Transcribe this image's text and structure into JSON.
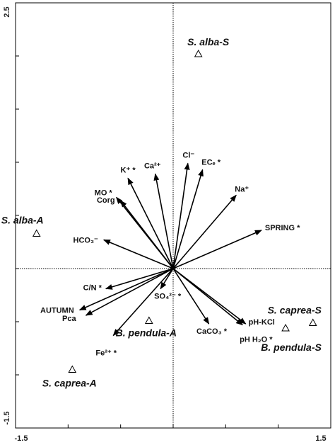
{
  "chart_data": {
    "type": "scatter",
    "title": "",
    "xlabel": "",
    "ylabel": "",
    "xlim": [
      -1.5,
      1.5
    ],
    "ylim": [
      -1.5,
      2.5
    ],
    "x_ticks": [
      "-1.5",
      "1.5"
    ],
    "y_ticks": [
      "2.5",
      "-1.5"
    ],
    "grid": false,
    "reference_lines": {
      "x": 0,
      "y": 0
    },
    "vectors": [
      {
        "label": "Cl⁻",
        "x": 0.14,
        "y": 0.99
      },
      {
        "label": "ECₑ *",
        "x": 0.28,
        "y": 0.93
      },
      {
        "label": "Ca²⁺",
        "x": -0.17,
        "y": 0.89
      },
      {
        "label": "K⁺ *",
        "x": -0.43,
        "y": 0.85
      },
      {
        "label": "MO *",
        "x": -0.54,
        "y": 0.67
      },
      {
        "label": "Corg",
        "x": -0.5,
        "y": 0.64
      },
      {
        "label": "Na⁺",
        "x": 0.6,
        "y": 0.69
      },
      {
        "label": "SPRING *",
        "x": 0.84,
        "y": 0.36
      },
      {
        "label": "HCO₃⁻",
        "x": -0.66,
        "y": 0.27
      },
      {
        "label": "C/N *",
        "x": -0.64,
        "y": -0.19
      },
      {
        "label": "AUTUMN",
        "x": -0.89,
        "y": -0.39
      },
      {
        "label": "Pca",
        "x": -0.83,
        "y": -0.44
      },
      {
        "label": "Fe²⁺ *",
        "x": -0.57,
        "y": -0.63
      },
      {
        "label": "SO₄²⁻ *",
        "x": -0.12,
        "y": -0.19
      },
      {
        "label": "CaCO₃ *",
        "x": 0.34,
        "y": -0.52
      },
      {
        "label": "pH-KCl",
        "x": 0.69,
        "y": -0.52
      },
      {
        "label": "pH H₂O *",
        "x": 0.66,
        "y": -0.53
      }
    ],
    "points": [
      {
        "label": "S. alba-S",
        "x": 0.24,
        "y": 2.02
      },
      {
        "label": "S. alba-A",
        "x": -1.3,
        "y": 0.33
      },
      {
        "label": "S. caprea-S",
        "x": 1.33,
        "y": -0.51
      },
      {
        "label": "B. pendula-S",
        "x": 1.07,
        "y": -0.56
      },
      {
        "label": "B. pendula-A",
        "x": -0.23,
        "y": -0.49
      },
      {
        "label": "S. caprea-A",
        "x": -0.96,
        "y": -0.95
      }
    ]
  }
}
